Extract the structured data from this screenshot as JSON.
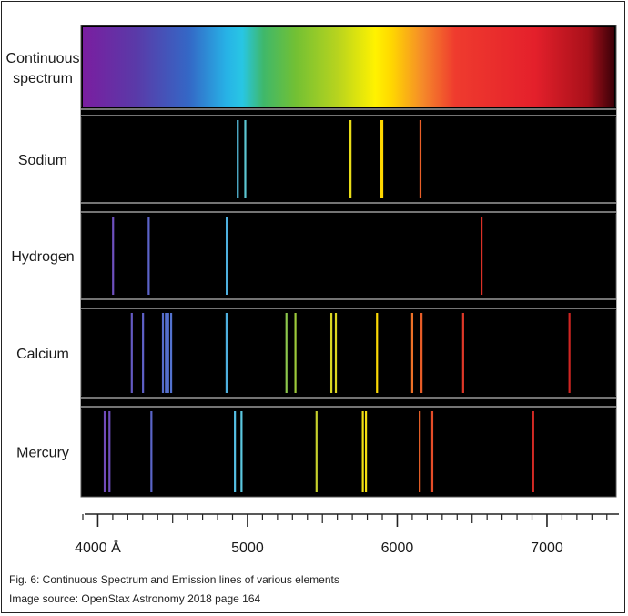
{
  "rows": [
    {
      "label_lines": [
        "Continuous",
        "spectrum"
      ],
      "type": "continuous",
      "lines": []
    },
    {
      "label_lines": [
        "Sodium"
      ],
      "type": "emission",
      "lines": [
        4935,
        4985,
        5683,
        5688,
        5890,
        5896,
        5900,
        6155
      ]
    },
    {
      "label_lines": [
        "Hydrogen"
      ],
      "type": "emission",
      "lines": [
        4102,
        4340,
        4861,
        6563
      ]
    },
    {
      "label_lines": [
        "Calcium"
      ],
      "type": "emission",
      "lines": [
        4227,
        4302,
        4435,
        4455,
        4470,
        4490,
        4860,
        5260,
        5320,
        5560,
        5590,
        5865,
        6100,
        6162,
        6440,
        7150
      ]
    },
    {
      "label_lines": [
        "Mercury"
      ],
      "type": "emission",
      "lines": [
        4046,
        4078,
        4358,
        4916,
        4960,
        5461,
        5770,
        5791,
        6150,
        6234,
        6908
      ]
    }
  ],
  "axis": {
    "min": 3900,
    "max": 7450,
    "major_ticks": [
      4000,
      5000,
      6000,
      7000
    ],
    "tick_labels": [
      "4000 Å",
      "5000",
      "6000",
      "7000"
    ],
    "minor_step": 100
  },
  "caption": {
    "line1": "Fig. 6: Continuous Spectrum and Emission lines of various elements",
    "line2": "Image source: OpenStax Astronomy 2018 page 164"
  }
}
